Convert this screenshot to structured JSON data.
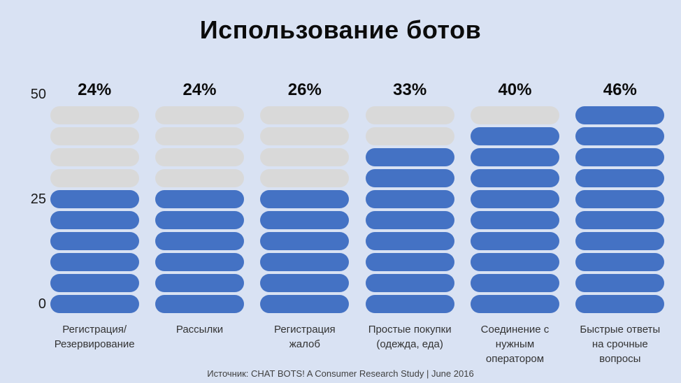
{
  "chart_data": {
    "type": "bar",
    "subtype": "pictogram-pill-columns",
    "title": "Использование ботов",
    "xlabel": "",
    "ylabel": "",
    "ylim": [
      0,
      50
    ],
    "yticks": [
      50,
      25,
      0
    ],
    "ytick_labels": [
      "50",
      "25",
      "0"
    ],
    "unit_per_pill": 5,
    "pills_per_column": 10,
    "grid": false,
    "legend_position": "none",
    "categories": [
      "Регистрация/ Резервирование",
      "Рассылки",
      "Регистрация жалоб",
      "Простые покупки (одежда, еда)",
      "Соединение с нужным оператором",
      "Быстрые ответы на срочные вопросы"
    ],
    "category_lines": [
      [
        "Регистрация/",
        "Резервирование"
      ],
      [
        "Рассылки"
      ],
      [
        "Регистрация",
        "жалоб"
      ],
      [
        "Простые покупки",
        "(одежда, еда)"
      ],
      [
        "Соединение с",
        "нужным",
        "оператором"
      ],
      [
        "Быстрые ответы",
        "на срочные",
        "вопросы"
      ]
    ],
    "values": [
      24,
      24,
      26,
      33,
      40,
      46
    ],
    "value_labels": [
      "24%",
      "24%",
      "26%",
      "33%",
      "40%",
      "46%"
    ],
    "filled_pills": [
      6,
      6,
      6,
      8,
      9,
      10
    ],
    "colors": {
      "filled_pill": "#4472c4",
      "empty_pill": "#d9d9d9",
      "background": "#d9e2f3",
      "text": "#0b0b0b"
    },
    "source": "Источник: CHAT BOTS! A Consumer Research Study | June 2016"
  }
}
